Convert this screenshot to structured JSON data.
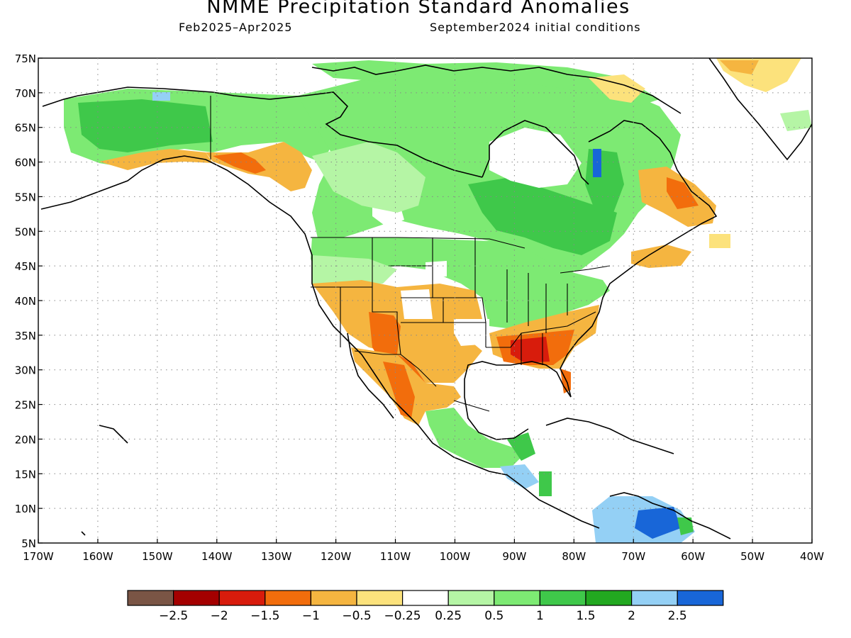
{
  "header": {
    "title": "NMME Precipitation Standard Anomalies",
    "period": "Feb2025–Apr2025",
    "initial_conditions": "September2024 initial conditions"
  },
  "map": {
    "lon_labels": [
      "170W",
      "160W",
      "150W",
      "140W",
      "130W",
      "120W",
      "110W",
      "100W",
      "90W",
      "80W",
      "70W",
      "60W",
      "50W",
      "40W"
    ],
    "lat_labels": [
      "75N",
      "70N",
      "65N",
      "60N",
      "55N",
      "50N",
      "45N",
      "40N",
      "35N",
      "30N",
      "25N",
      "20N",
      "15N",
      "10N",
      "5N"
    ]
  },
  "legend": {
    "colors": [
      "#7a5545",
      "#a40000",
      "#d81c0c",
      "#f26d0c",
      "#f5b540",
      "#fce27c",
      "#ffffff",
      "#b5f5a5",
      "#7dea73",
      "#3fc84a",
      "#22a820",
      "#94d0f5",
      "#1866d8"
    ],
    "labels": [
      "−2.5",
      "−2",
      "−1.5",
      "−1",
      "−0.5",
      "−0.25",
      "0.25",
      "0.5",
      "1",
      "1.5",
      "2",
      "2.5"
    ]
  }
}
